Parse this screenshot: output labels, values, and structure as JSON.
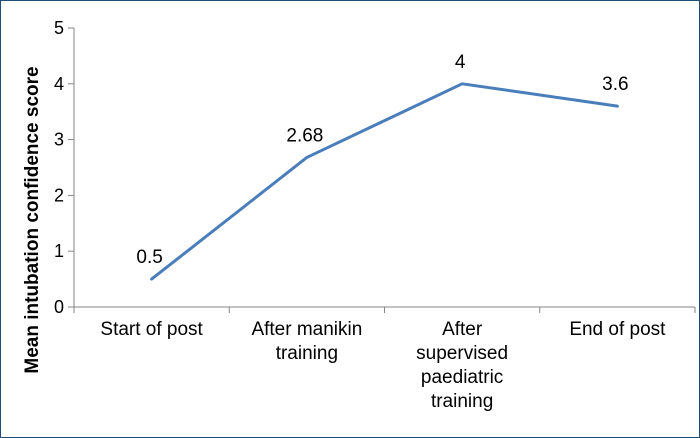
{
  "chart_data": {
    "type": "line",
    "title": "",
    "xlabel": "",
    "ylabel": "Mean intubation confidence score",
    "ylim": [
      0,
      5
    ],
    "yticks": [
      "0",
      "1",
      "2",
      "3",
      "4",
      "5"
    ],
    "categories": [
      [
        "Start of post"
      ],
      [
        "After manikin",
        "training"
      ],
      [
        "After",
        "supervised",
        "paediatric",
        "training"
      ],
      [
        "End of post"
      ]
    ],
    "series": [
      {
        "values": [
          0.5,
          2.68,
          4,
          3.6
        ],
        "labels": [
          "0.5",
          "2.68",
          "4",
          "3.6"
        ],
        "color": "#4a7ebb"
      }
    ],
    "grid": false,
    "legend": "none"
  }
}
